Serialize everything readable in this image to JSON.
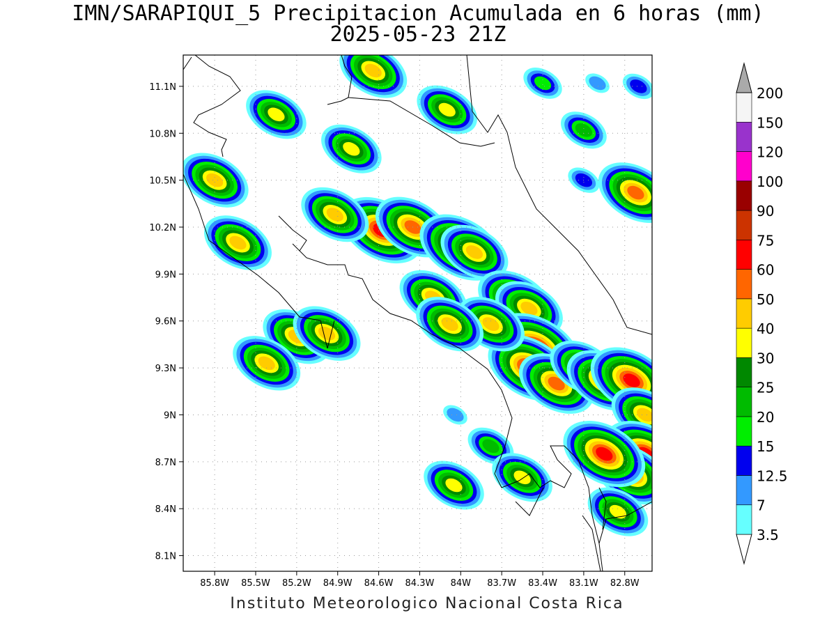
{
  "title": "IMN/SARAPIQUI_5 Precipitacion Acumulada en 6 horas (mm)",
  "subtitle": "2025-05-23 21Z",
  "footer": "Instituto Meteorologico Nacional Costa Rica",
  "map": {
    "lon_ticks": [
      "85.8W",
      "85.5W",
      "85.2W",
      "84.9W",
      "84.6W",
      "84.3W",
      "84W",
      "83.7W",
      "83.4W",
      "83.1W",
      "82.8W"
    ],
    "lat_ticks": [
      "11.1N",
      "10.8N",
      "10.5N",
      "10.2N",
      "9.9N",
      "9.6N",
      "9.3N",
      "9N",
      "8.7N",
      "8.4N",
      "8.1N"
    ],
    "grid": "dotted"
  },
  "legend": {
    "levels": [
      "3.5",
      "7",
      "12.5",
      "15",
      "20",
      "25",
      "30",
      "40",
      "50",
      "60",
      "75",
      "90",
      "100",
      "120",
      "150",
      "200"
    ],
    "colors": [
      "#66ffff",
      "#3399ff",
      "#0000ee",
      "#00ee00",
      "#00bb00",
      "#008800",
      "#ffff00",
      "#ffcc00",
      "#ff6600",
      "#ff0000",
      "#cc3300",
      "#990000",
      "#ff00cc",
      "#9933cc",
      "#f5f5f5",
      "#aaaaaa"
    ]
  },
  "precip_cells": [
    {
      "lon": -84.58,
      "lat": 10.18,
      "level": 60
    },
    {
      "lon": -84.35,
      "lat": 10.2,
      "level": 50
    },
    {
      "lon": -84.0,
      "lat": 10.07,
      "level": 60
    },
    {
      "lon": -83.9,
      "lat": 10.04,
      "level": 40
    },
    {
      "lon": -83.6,
      "lat": 9.73,
      "level": 50
    },
    {
      "lon": -83.5,
      "lat": 9.68,
      "level": 40
    },
    {
      "lon": -83.45,
      "lat": 9.42,
      "level": 75
    },
    {
      "lon": -83.5,
      "lat": 9.3,
      "level": 60
    },
    {
      "lon": -83.3,
      "lat": 9.2,
      "level": 50
    },
    {
      "lon": -83.1,
      "lat": 9.3,
      "level": 40
    },
    {
      "lon": -82.95,
      "lat": 9.22,
      "level": 50
    },
    {
      "lon": -82.75,
      "lat": 9.22,
      "level": 60
    },
    {
      "lon": -82.65,
      "lat": 9.0,
      "level": 40
    },
    {
      "lon": -82.65,
      "lat": 8.75,
      "level": 60
    },
    {
      "lon": -82.75,
      "lat": 8.62,
      "level": 50
    },
    {
      "lon": -82.95,
      "lat": 8.75,
      "level": 60
    },
    {
      "lon": -85.8,
      "lat": 10.5,
      "level": 40
    },
    {
      "lon": -85.63,
      "lat": 10.1,
      "level": 40
    },
    {
      "lon": -85.2,
      "lat": 9.5,
      "level": 40
    },
    {
      "lon": -84.98,
      "lat": 9.52,
      "level": 40
    },
    {
      "lon": -85.42,
      "lat": 9.33,
      "level": 40
    },
    {
      "lon": -84.64,
      "lat": 11.2,
      "level": 40
    },
    {
      "lon": -82.72,
      "lat": 10.42,
      "level": 50
    },
    {
      "lon": -84.1,
      "lat": 10.95,
      "level": 30
    },
    {
      "lon": -84.92,
      "lat": 10.28,
      "level": 40
    },
    {
      "lon": -84.8,
      "lat": 10.7,
      "level": 30
    },
    {
      "lon": -85.35,
      "lat": 10.92,
      "level": 30
    },
    {
      "lon": -84.2,
      "lat": 9.75,
      "level": 40
    },
    {
      "lon": -83.78,
      "lat": 9.58,
      "level": 40
    },
    {
      "lon": -84.08,
      "lat": 9.58,
      "level": 40
    },
    {
      "lon": -83.78,
      "lat": 8.8,
      "level": 20
    },
    {
      "lon": -84.05,
      "lat": 8.55,
      "level": 30
    },
    {
      "lon": -83.55,
      "lat": 8.6,
      "level": 30
    },
    {
      "lon": -82.85,
      "lat": 8.38,
      "level": 30
    },
    {
      "lon": -84.04,
      "lat": 9.0,
      "level": 7
    },
    {
      "lon": -83.1,
      "lat": 10.82,
      "level": 20
    },
    {
      "lon": -83.1,
      "lat": 10.5,
      "level": 12.5
    },
    {
      "lon": -83.0,
      "lat": 11.12,
      "level": 7
    },
    {
      "lon": -82.7,
      "lat": 11.1,
      "level": 12.5
    },
    {
      "lon": -83.4,
      "lat": 11.12,
      "level": 15
    }
  ]
}
